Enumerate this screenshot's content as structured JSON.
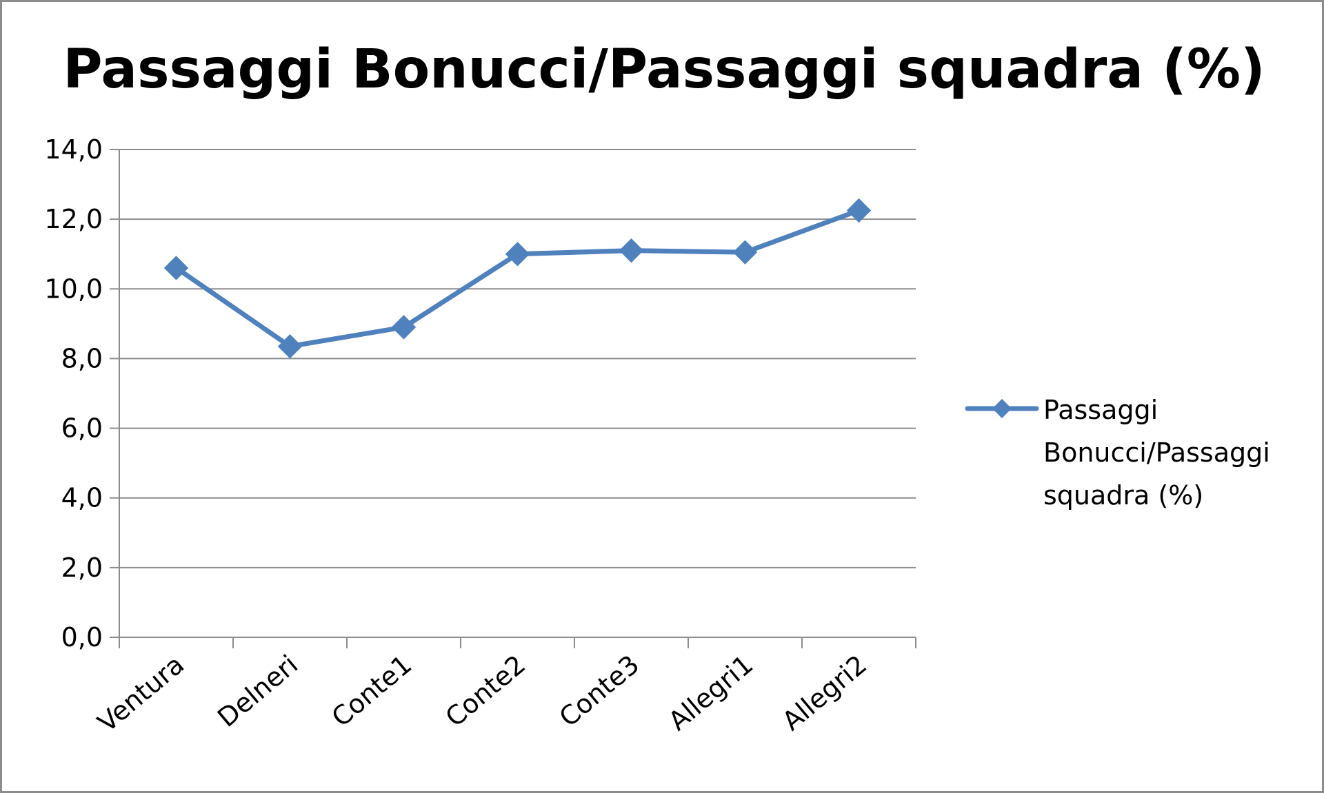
{
  "chart_data": {
    "type": "line",
    "title": "Passaggi Bonucci/Passaggi squadra (%)",
    "categories": [
      "Ventura",
      "Delneri",
      "Conte1",
      "Conte2",
      "Conte3",
      "Allegri1",
      "Allegri2"
    ],
    "series": [
      {
        "name": "Passaggi Bonucci/Passaggi squadra (%)",
        "legend_lines": [
          "Passaggi",
          "Bonucci/Passaggi",
          "squadra (%)"
        ],
        "values": [
          10.6,
          8.35,
          8.9,
          11.0,
          11.1,
          11.05,
          12.25
        ],
        "color": "#4f81bd",
        "marker": "diamond"
      }
    ],
    "ylim": [
      0,
      14
    ],
    "yticks": [
      "0,0",
      "2,0",
      "4,0",
      "6,0",
      "8,0",
      "10,0",
      "12,0",
      "14,0"
    ],
    "ytick_values": [
      0,
      2,
      4,
      6,
      8,
      10,
      12,
      14
    ],
    "grid": true,
    "legend": "right",
    "xlabel": "",
    "ylabel": ""
  }
}
